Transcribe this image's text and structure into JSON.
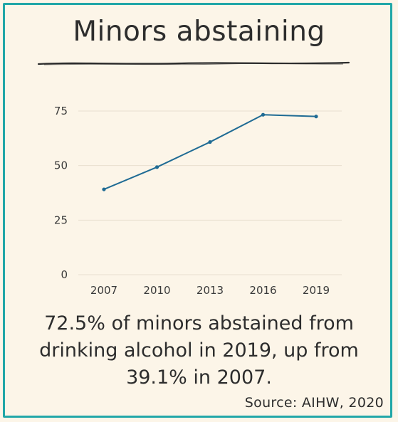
{
  "title": "Minors abstaining",
  "caption": "72.5% of minors abstained from drinking alcohol in 2019, up from 39.1% in 2007.",
  "source": "Source: AIHW, 2020",
  "colors": {
    "border": "#21a7a8",
    "line": "#1f6b94",
    "background": "#fcf5e8",
    "grid": "#e9dfcf"
  },
  "chart_data": {
    "type": "line",
    "title": "",
    "xlabel": "",
    "ylabel": "",
    "categories": [
      "2007",
      "2010",
      "2013",
      "2016",
      "2019"
    ],
    "series": [
      {
        "values": [
          39.1,
          49.3,
          60.8,
          73.3,
          72.5
        ]
      }
    ],
    "ylim": [
      0,
      75
    ],
    "yticks": [
      0,
      25,
      50,
      75
    ],
    "grid": true,
    "legend": "none"
  }
}
